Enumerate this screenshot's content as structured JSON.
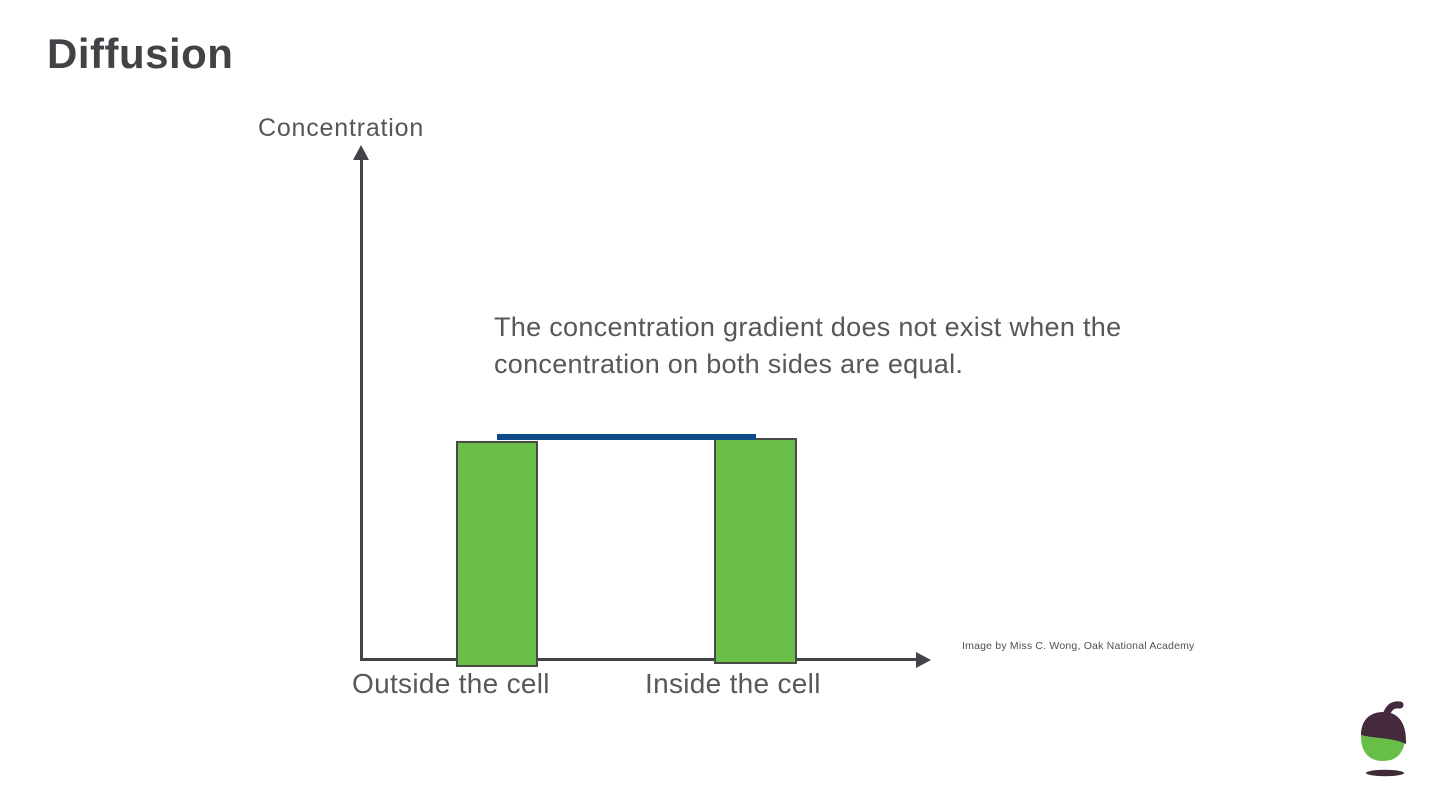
{
  "slide": {
    "title": "Diffusion",
    "attribution": "Image by Miss C. Wong, Oak National Academy"
  },
  "chart_data": {
    "type": "bar",
    "title": "",
    "xlabel": "",
    "ylabel": "Concentration",
    "categories": [
      "Outside the cell",
      "Inside the cell"
    ],
    "values": [
      0.44,
      0.44
    ],
    "ylim": [
      0,
      1
    ],
    "grid": false,
    "legend": false,
    "annotation": "The concentration gradient does not exist when the concentration on both sides are equal.",
    "bar_color": "#6abf4b",
    "bar_border_color": "#474c42",
    "axis_color": "#414347",
    "equal_level_line": {
      "value": 0.44,
      "color": "#0c4a88"
    }
  },
  "logo": {
    "name": "oak-national-academy-acorn",
    "cap_color": "#452a3d",
    "nut_color": "#68bf48",
    "shadow_color": "#3f2c38"
  }
}
